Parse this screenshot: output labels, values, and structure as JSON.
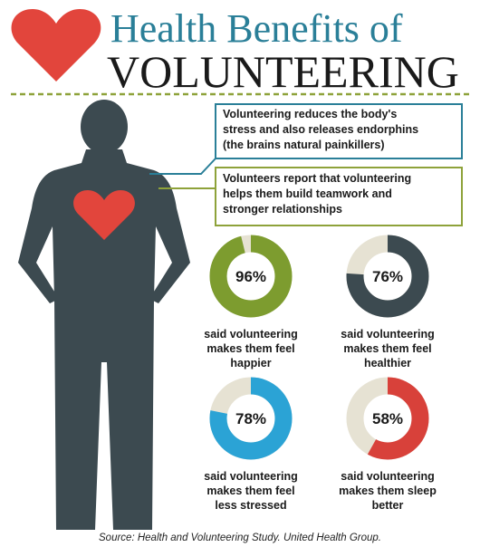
{
  "header": {
    "title_line1": "Health Benefits of",
    "title_line2": "VOLUNTEERING"
  },
  "callouts": [
    [
      "Volunteering reduces the body's",
      "stress and also releases endorphins",
      "(the brains natural painkillers)"
    ],
    [
      "Volunteers report that volunteering",
      "helps them build teamwork and",
      "stronger relationships"
    ]
  ],
  "stats": {
    "values": [
      96,
      76,
      78,
      58
    ],
    "value_labels": [
      "96%",
      "76%",
      "78%",
      "58%"
    ],
    "colors": [
      "#7d9c2f",
      "#3c4a50",
      "#2ba3d5",
      "#d8413a"
    ],
    "captions": [
      [
        "said volunteering",
        "makes them feel",
        "happier"
      ],
      [
        "said volunteering",
        "makes them feel",
        "healthier"
      ],
      [
        "said volunteering",
        "makes them feel",
        "less stressed"
      ],
      [
        "said volunteering",
        "makes them sleep",
        "better"
      ]
    ]
  },
  "source": "Source: Health and Volunteering Study. United Health Group."
}
